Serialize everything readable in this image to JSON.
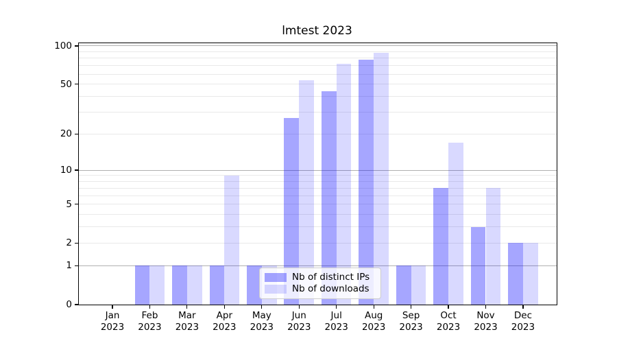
{
  "figure": {
    "title": "lmtest 2023"
  },
  "chart_data": {
    "type": "bar",
    "title": "lmtest 2023",
    "categories": [
      "Jan",
      "Feb",
      "Mar",
      "Apr",
      "May",
      "Jun",
      "Jul",
      "Aug",
      "Sep",
      "Oct",
      "Nov",
      "Dec"
    ],
    "year": "2023",
    "series": [
      {
        "name": "Nb of distinct IPs",
        "values": [
          0,
          1,
          1,
          1,
          1,
          27,
          44,
          78,
          1,
          7,
          3,
          2
        ]
      },
      {
        "name": "Nb of downloads",
        "values": [
          0,
          1,
          1,
          9,
          1,
          54,
          72,
          88,
          1,
          17,
          7,
          2
        ]
      }
    ],
    "xlabel": "",
    "ylabel": "",
    "yscale": "log1p",
    "ylim": [
      0,
      105
    ],
    "yticks": [
      0,
      1,
      2,
      5,
      10,
      20,
      50,
      100
    ],
    "major_gridlines": [
      1,
      10,
      100
    ],
    "minor_gridlines": [
      2,
      3,
      4,
      5,
      6,
      7,
      8,
      9,
      20,
      30,
      40,
      50,
      60,
      70,
      80,
      90
    ],
    "grid": "on",
    "legend_position": "inside-bottom-center",
    "colors": {
      "series_fills": [
        "rgba(0,0,255,0.35)",
        "rgba(0,0,255,0.15)"
      ],
      "series_hex_on_white": [
        "#a6a6ff",
        "#d9d9ff"
      ],
      "major_grid": "#b0b0b0",
      "minor_grid": "#e9e9e9",
      "spine": "#000000",
      "background": "#ffffff"
    }
  }
}
